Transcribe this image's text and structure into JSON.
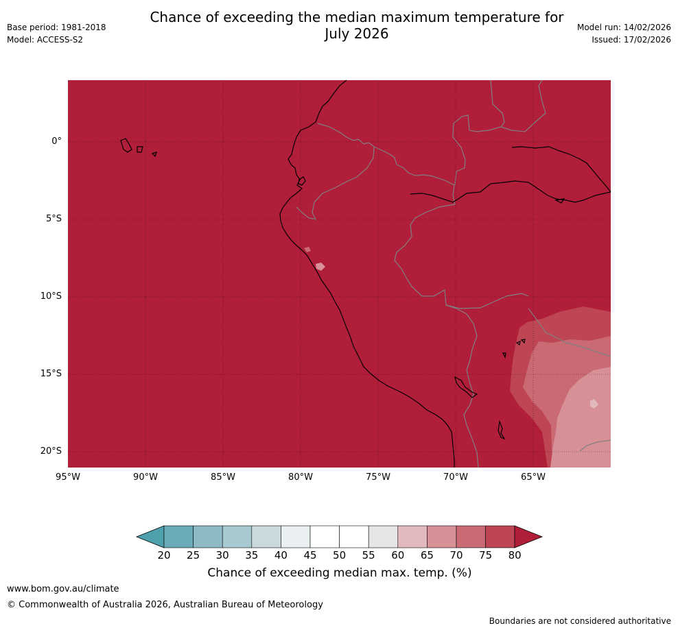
{
  "title_line1": "Chance of exceeding the median maximum temperature for",
  "title_line2": "July 2026",
  "base_period": "Base period: 1981-2018",
  "model": "Model: ACCESS-S2",
  "model_run": "Model run: 14/02/2026",
  "issued": "Issued: 17/02/2026",
  "lat_labels": [
    "0°",
    "5°S",
    "10°S",
    "15°S",
    "20°S"
  ],
  "lon_labels": [
    "95°W",
    "90°W",
    "85°W",
    "80°W",
    "75°W",
    "70°W",
    "65°W"
  ],
  "legend": {
    "ticks": [
      "20",
      "25",
      "30",
      "35",
      "40",
      "45",
      "50",
      "55",
      "60",
      "65",
      "70",
      "75",
      "80"
    ],
    "colors": [
      "#6aabb8",
      "#8cbbc6",
      "#a9c9d0",
      "#c9d9de",
      "#eaf0f2",
      "#ffffff",
      "#ffffff",
      "#e6e6e6",
      "#e2b9bd",
      "#d69096",
      "#c96a74",
      "#be4654"
    ],
    "under_color": "#4fa0ad",
    "over_color": "#b01e3a",
    "title": "Chance of exceeding median max. temp. (%)"
  },
  "footer_url": "www.bom.gov.au/climate",
  "footer_copyright": "© Commonwealth of Australia 2026, Australian Bureau of Meteorology",
  "disclaimer": "Boundaries are not considered authoritative"
}
